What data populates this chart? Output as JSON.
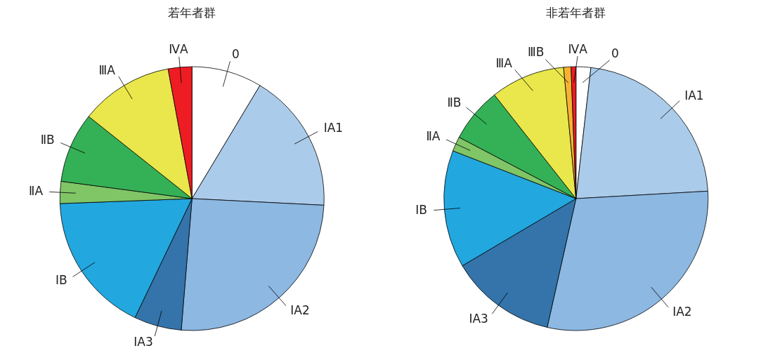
{
  "chart_data": [
    {
      "type": "pie",
      "title": "若年者群",
      "categories": [
        "0",
        "ⅠA1",
        "ⅠA2",
        "ⅠA3",
        "ⅠB",
        "ⅡA",
        "ⅡB",
        "ⅢA",
        "ⅣA"
      ],
      "values": [
        8.6,
        17.2,
        25.5,
        5.8,
        17.3,
        2.7,
        8.6,
        11.4,
        2.9
      ],
      "colors": [
        "#ffffff",
        "#abcbea",
        "#8cb8e2",
        "#3474aa",
        "#22a7df",
        "#80c566",
        "#34b157",
        "#e9e74b",
        "#ee1d23"
      ],
      "legend": false
    },
    {
      "type": "pie",
      "title": "非若年者群",
      "categories": [
        "0",
        "ⅠA1",
        "ⅠA2",
        "ⅠA3",
        "ⅠB",
        "ⅡA",
        "ⅡB",
        "ⅢA",
        "ⅢB",
        "ⅣA"
      ],
      "values": [
        1.8,
        22.3,
        29.4,
        13.0,
        14.4,
        1.8,
        6.7,
        9.1,
        0.9,
        0.6
      ],
      "colors": [
        "#ffffff",
        "#abcbea",
        "#8cb8e2",
        "#3474aa",
        "#22a7df",
        "#80c566",
        "#34b157",
        "#e9e74b",
        "#f6b333",
        "#ee1d23"
      ],
      "legend": false
    }
  ]
}
